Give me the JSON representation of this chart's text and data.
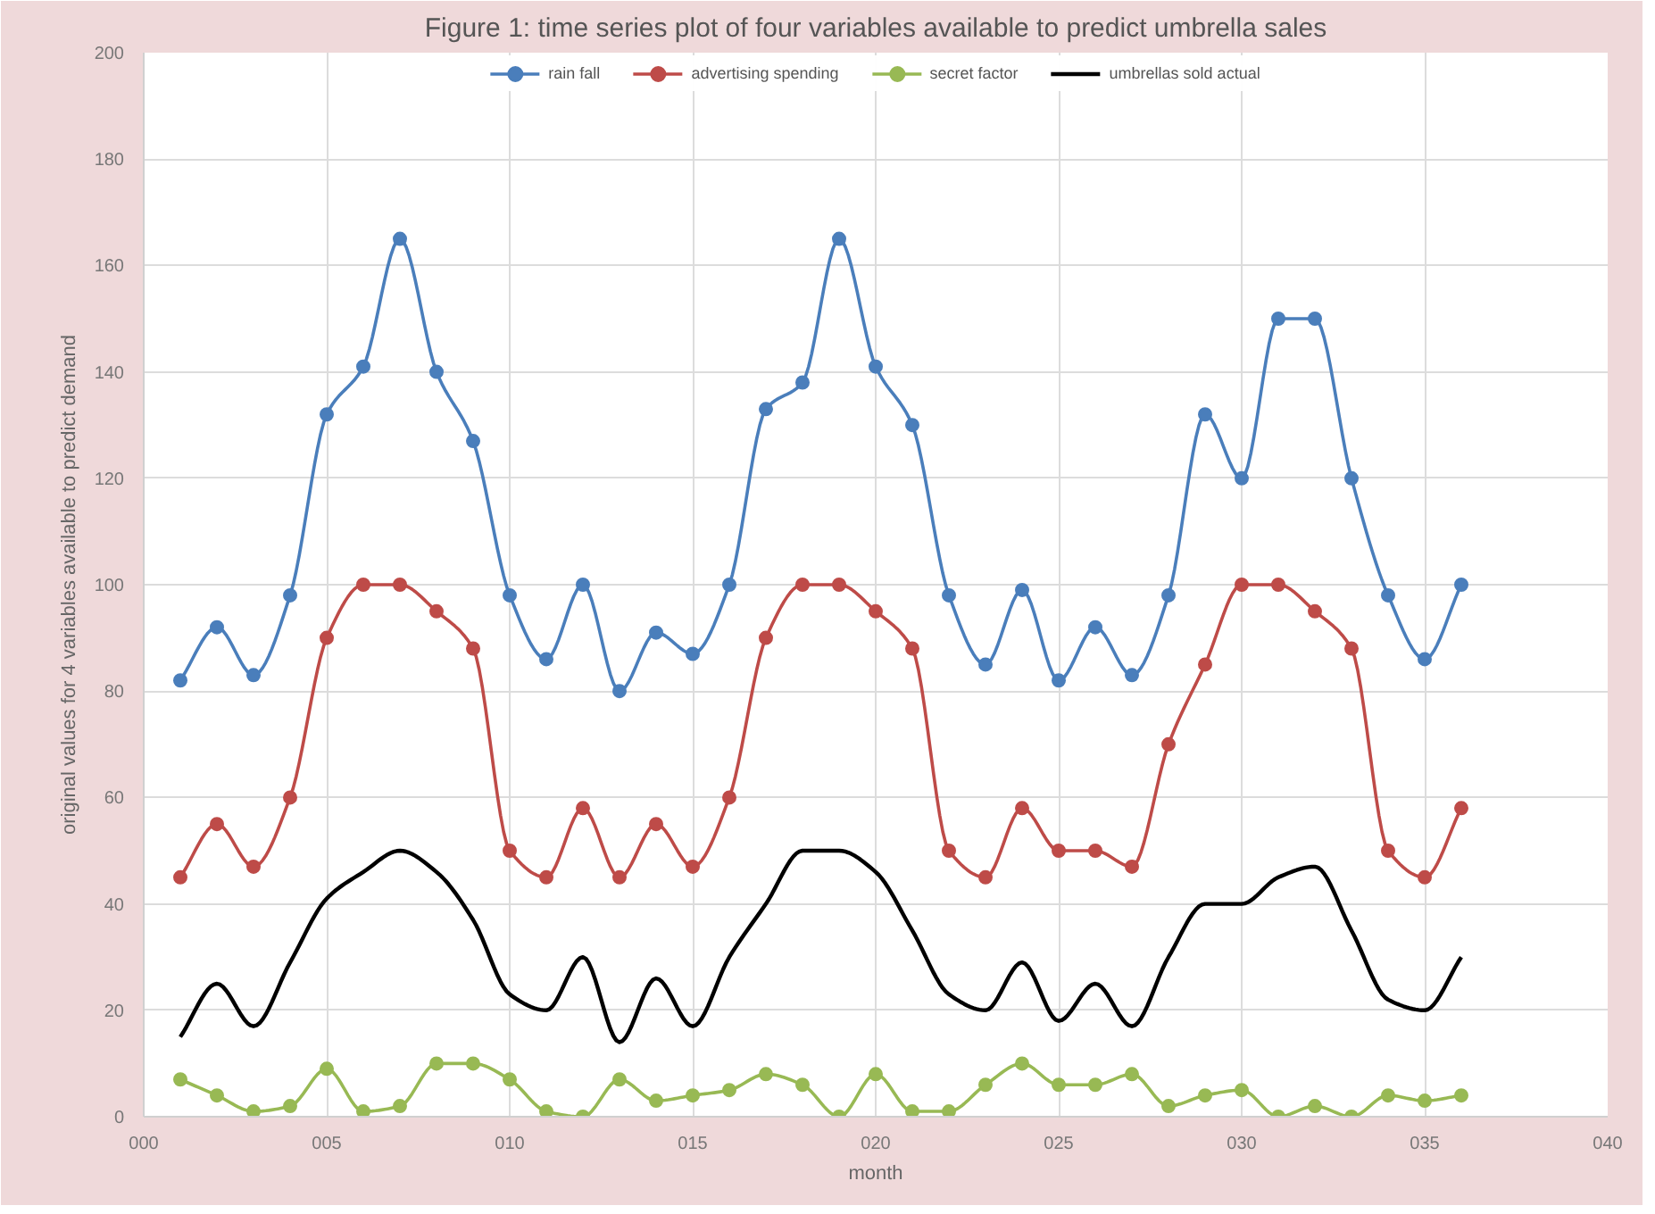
{
  "chart_data": {
    "type": "line",
    "title": "Figure 1: time series plot of four variables available to predict umbrella sales",
    "xlabel": "month",
    "ylabel": "original values for 4 variables available to predict demand",
    "x": [
      1,
      2,
      3,
      4,
      5,
      6,
      7,
      8,
      9,
      10,
      11,
      12,
      13,
      14,
      15,
      16,
      17,
      18,
      19,
      20,
      21,
      22,
      23,
      24,
      25,
      26,
      27,
      28,
      29,
      30,
      31,
      32,
      33,
      34,
      35,
      36
    ],
    "xlim": [
      0,
      40
    ],
    "xticks": [
      {
        "value": 0,
        "label": "000"
      },
      {
        "value": 5,
        "label": "005"
      },
      {
        "value": 10,
        "label": "010"
      },
      {
        "value": 15,
        "label": "015"
      },
      {
        "value": 20,
        "label": "020"
      },
      {
        "value": 25,
        "label": "025"
      },
      {
        "value": 30,
        "label": "030"
      },
      {
        "value": 35,
        "label": "035"
      },
      {
        "value": 40,
        "label": "040"
      }
    ],
    "ylim": [
      0,
      200
    ],
    "yticks": [
      0,
      20,
      40,
      60,
      80,
      100,
      120,
      140,
      160,
      180,
      200
    ],
    "grid": true,
    "legend": "top",
    "marker": "circle",
    "series": [
      {
        "name": "rain fall",
        "color": "#4a7ebb",
        "values": [
          82,
          92,
          83,
          98,
          132,
          141,
          165,
          140,
          127,
          98,
          86,
          100,
          80,
          91,
          87,
          100,
          133,
          138,
          165,
          141,
          130,
          98,
          85,
          99,
          82,
          92,
          83,
          98,
          132,
          120,
          150,
          150,
          120,
          98,
          86,
          100
        ]
      },
      {
        "name": "advertising spending",
        "color": "#be4b48",
        "values": [
          45,
          55,
          47,
          60,
          90,
          100,
          100,
          95,
          88,
          50,
          45,
          58,
          45,
          55,
          47,
          60,
          90,
          100,
          100,
          95,
          88,
          50,
          45,
          58,
          50,
          50,
          47,
          70,
          85,
          100,
          100,
          95,
          88,
          50,
          45,
          58
        ]
      },
      {
        "name": "secret factor",
        "color": "#98b954",
        "values": [
          7,
          4,
          1,
          2,
          9,
          1,
          2,
          10,
          10,
          7,
          1,
          0,
          7,
          3,
          4,
          5,
          8,
          6,
          0,
          8,
          1,
          1,
          6,
          10,
          6,
          6,
          8,
          2,
          4,
          5,
          0,
          2,
          0,
          4,
          3,
          4
        ]
      },
      {
        "name": "umbrellas sold actual",
        "color": "#000000",
        "marker": "none",
        "values": [
          15,
          25,
          17,
          29,
          41,
          46,
          50,
          46,
          37,
          23,
          20,
          30,
          14,
          26,
          17,
          30,
          40,
          50,
          50,
          46,
          35,
          23,
          20,
          29,
          18,
          25,
          17,
          30,
          40,
          40,
          45,
          47,
          35,
          22,
          20,
          30
        ]
      }
    ]
  }
}
